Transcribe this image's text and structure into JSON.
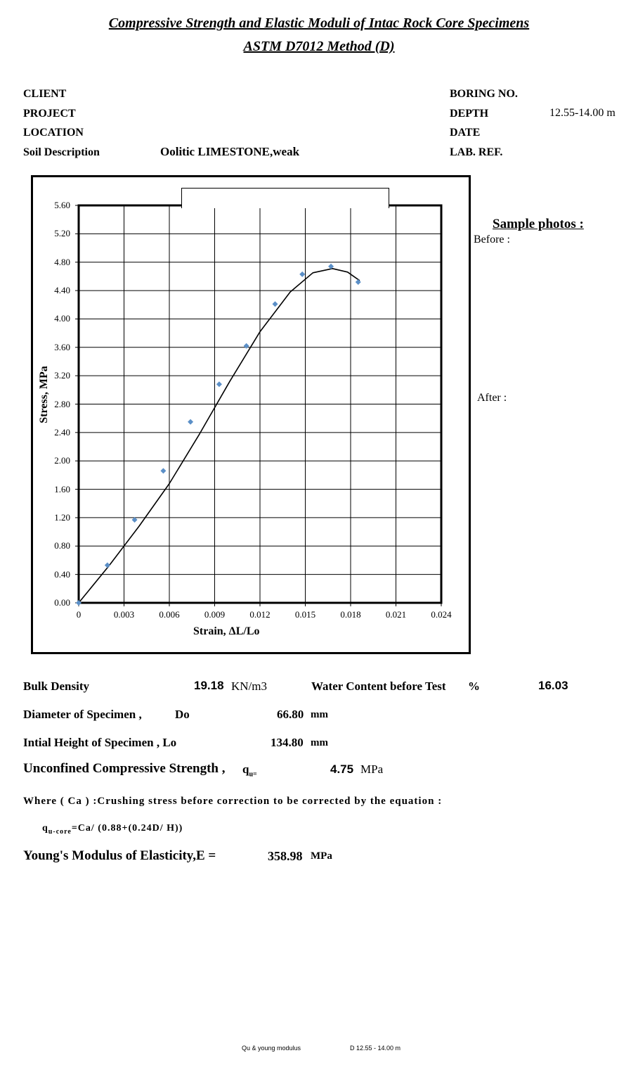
{
  "title": {
    "line1": "Compressive Strength and Elastic Moduli of Intac Rock Core Specimens",
    "line2": "ASTM D7012 Method (D)"
  },
  "header": {
    "client_label": "CLIENT",
    "project_label": "PROJECT",
    "location_label": "LOCATION",
    "soil_label": "Soil Description",
    "soil_value": "Oolitic LIMESTONE,weak",
    "boring_label": "BORING NO.",
    "depth_label": "DEPTH",
    "depth_value": "12.55-14.00 m",
    "date_label": "DATE",
    "labref_label": "LAB. REF."
  },
  "photos": {
    "heading": "Sample photos :",
    "before": "Before :",
    "after": "After :"
  },
  "chart_data": {
    "type": "scatter",
    "xlabel": "Strain, ΔL/Lo",
    "ylabel": "Stress, MPa",
    "xlim": [
      0,
      0.024
    ],
    "ylim": [
      0,
      5.6
    ],
    "x_ticks": [
      "0",
      "0.003",
      "0.006",
      "0.009",
      "0.012",
      "0.015",
      "0.018",
      "0.021",
      "0.024"
    ],
    "y_ticks": [
      "0.00",
      "0.40",
      "0.80",
      "1.20",
      "1.60",
      "2.00",
      "2.40",
      "2.80",
      "3.20",
      "3.60",
      "4.00",
      "4.40",
      "4.80",
      "5.20",
      "5.60"
    ],
    "grid": true,
    "points": [
      {
        "x": 0.0,
        "y": 0.0
      },
      {
        "x": 0.0019,
        "y": 0.53
      },
      {
        "x": 0.0037,
        "y": 1.17
      },
      {
        "x": 0.0056,
        "y": 1.86
      },
      {
        "x": 0.0074,
        "y": 2.55
      },
      {
        "x": 0.0093,
        "y": 3.08
      },
      {
        "x": 0.0111,
        "y": 3.62
      },
      {
        "x": 0.013,
        "y": 4.21
      },
      {
        "x": 0.0148,
        "y": 4.63
      },
      {
        "x": 0.0167,
        "y": 4.74
      },
      {
        "x": 0.0185,
        "y": 4.52
      }
    ],
    "trendline": [
      {
        "x": 0.0,
        "y": 0.0
      },
      {
        "x": 0.002,
        "y": 0.52
      },
      {
        "x": 0.004,
        "y": 1.08
      },
      {
        "x": 0.006,
        "y": 1.68
      },
      {
        "x": 0.008,
        "y": 2.38
      },
      {
        "x": 0.01,
        "y": 3.12
      },
      {
        "x": 0.012,
        "y": 3.82
      },
      {
        "x": 0.014,
        "y": 4.38
      },
      {
        "x": 0.0155,
        "y": 4.65
      },
      {
        "x": 0.0168,
        "y": 4.71
      },
      {
        "x": 0.0178,
        "y": 4.66
      },
      {
        "x": 0.0186,
        "y": 4.54
      }
    ],
    "marker_color": "#5b8fc7",
    "line_color": "#000000"
  },
  "results": {
    "bulk_density_label": "Bulk Density",
    "bulk_density_value": "19.18",
    "bulk_density_unit": "KN/m3",
    "water_content_label": "Water Content before Test",
    "water_content_pct": "%",
    "water_content_value": "16.03",
    "diameter_label": "Diameter of Specimen ,",
    "diameter_symbol": "Do",
    "diameter_value": "66.80",
    "diameter_unit": "mm",
    "height_label": "Intial Height of Specimen ,  Lo",
    "height_value": "134.80",
    "height_unit": "mm",
    "ucs_label": "Unconfined Compressive Strength ,",
    "ucs_symbol": "q",
    "ucs_subscript": "u=",
    "ucs_value": "4.75",
    "ucs_unit": "MPa",
    "where_text": "Where ( Ca ) :Crushing stress before correction to be corrected by the equation :",
    "eq_q": "q",
    "eq_sub": "u-core",
    "eq_rest": "=Ca/ (0.88+(0.24D/ H))",
    "young_label": "Young's Modulus of Elasticity,E =",
    "young_value": "358.98",
    "young_unit": "MPa"
  },
  "footer": {
    "left": "Qu & young modulus",
    "right": "D 12.55 - 14.00 m"
  }
}
